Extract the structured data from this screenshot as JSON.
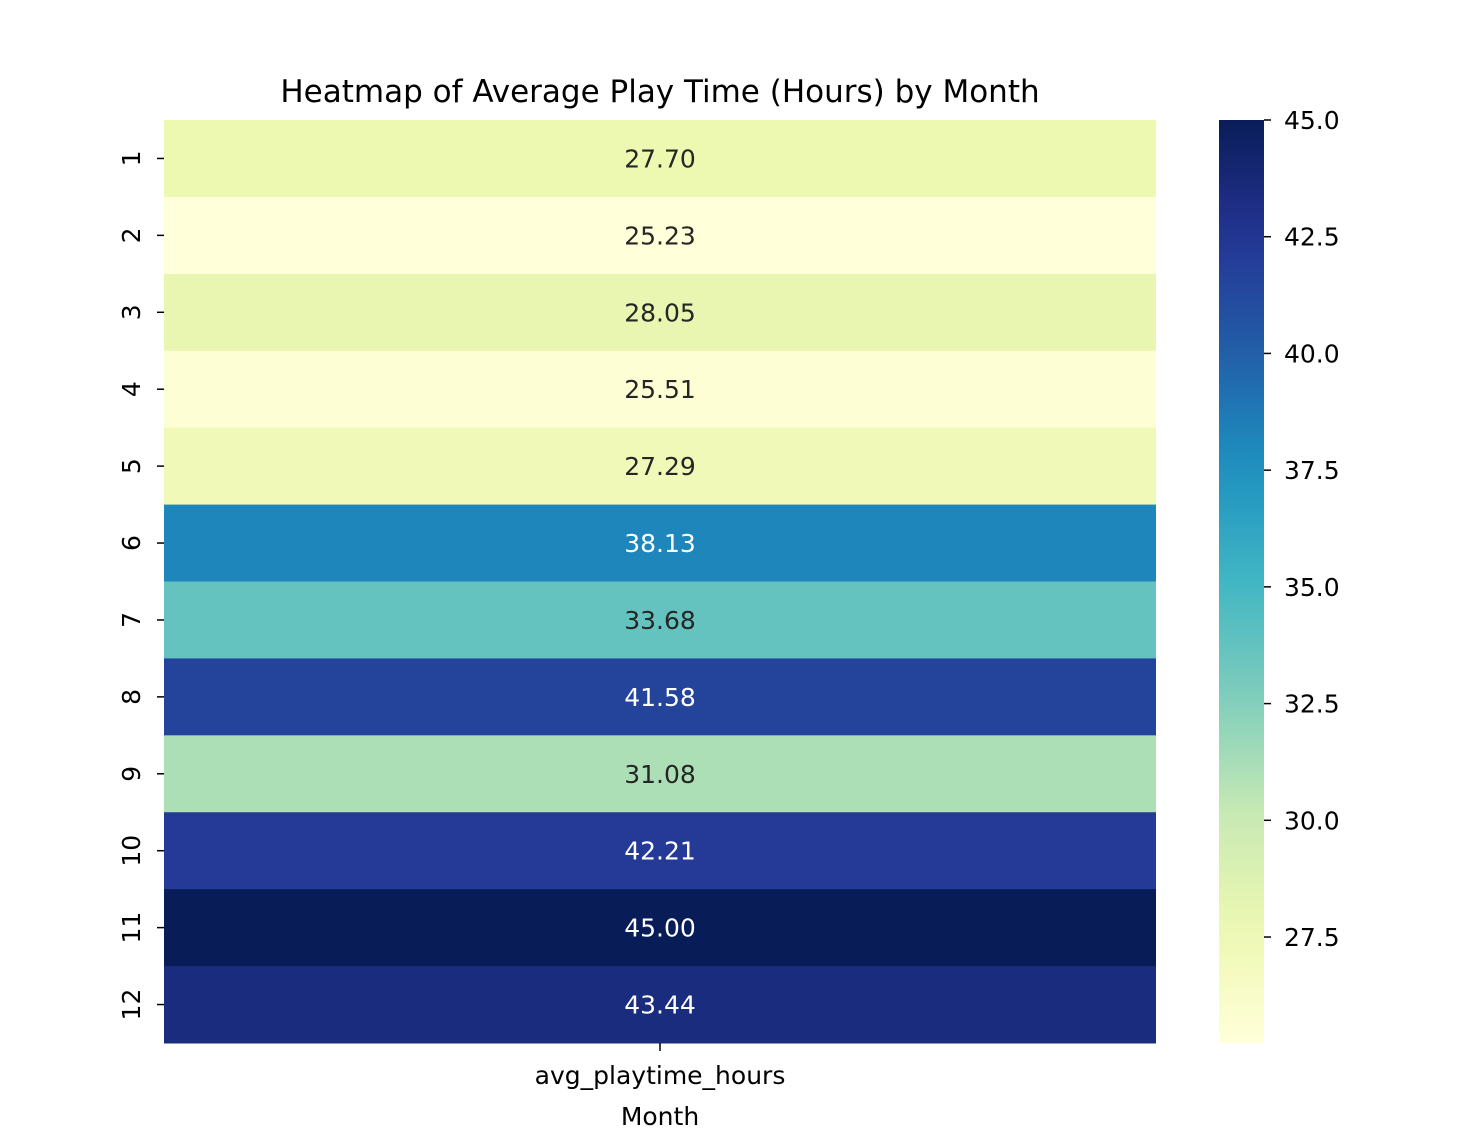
{
  "chart_data": {
    "type": "heatmap",
    "title": "Heatmap of Average Play Time (Hours) by Month",
    "xlabel": "Month",
    "ylabel": "",
    "columns": [
      "avg_playtime_hours"
    ],
    "rows": [
      "1",
      "2",
      "3",
      "4",
      "5",
      "6",
      "7",
      "8",
      "9",
      "10",
      "11",
      "12"
    ],
    "values": [
      27.7,
      25.23,
      28.05,
      25.51,
      27.29,
      38.13,
      33.68,
      41.58,
      31.08,
      42.21,
      45.0,
      43.44
    ],
    "value_labels": [
      "27.70",
      "25.23",
      "28.05",
      "25.51",
      "27.29",
      "38.13",
      "33.68",
      "41.58",
      "31.08",
      "42.21",
      "45.00",
      "43.44"
    ],
    "colormap": "YlGnBu",
    "colorbar": {
      "min": 25.23,
      "max": 45.0,
      "ticks": [
        27.5,
        30.0,
        32.5,
        35.0,
        37.5,
        40.0,
        42.5,
        45.0
      ],
      "tick_labels": [
        "27.5",
        "30.0",
        "32.5",
        "35.0",
        "37.5",
        "40.0",
        "42.5",
        "45.0"
      ]
    }
  }
}
